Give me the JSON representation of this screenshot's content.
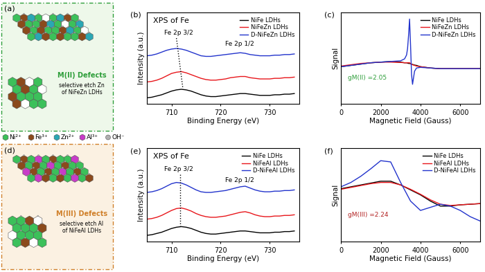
{
  "diagrams": [
    {
      "panel": "(a)",
      "title": "M(II) Defects",
      "note": "selective etch Zn\nof NiFeZn LDHs",
      "color": "#2e9e3a"
    },
    {
      "panel": "(d)",
      "title": "M(III) Defects",
      "note": "selective etch Al\nof NiFeAl LDHs",
      "color": "#d0802a"
    }
  ],
  "species": [
    {
      "name": "Ni²⁺",
      "color": "#3cc05a",
      "marker": "hexagon"
    },
    {
      "name": "Fe³⁺",
      "color": "#8b4a1c",
      "marker": "hexagon"
    },
    {
      "name": "Zn²⁺",
      "color": "#2aa7b4",
      "marker": "hexagon"
    },
    {
      "name": "Al³⁺",
      "color": "#c83cc8",
      "marker": "hexagon"
    },
    {
      "name": "OH⁻",
      "color": "#b0b0b0",
      "marker": "circle"
    }
  ],
  "chart_data": [
    {
      "type": "line",
      "panel": "(b)",
      "title": "XPS of Fe",
      "x_label": "Binding Energy (eV)",
      "y_label": "Intensity (a.u.)",
      "xlim": [
        705,
        736
      ],
      "xticks": [
        710,
        720,
        730
      ],
      "ylim": [
        0,
        15
      ],
      "tick_labels": "x",
      "legend": "upper right",
      "annotations": [
        {
          "text": "Fe 2p 3/2"
        },
        {
          "text": "Fe 2p 1/2"
        }
      ],
      "guide_line": {
        "x": [
          711.0,
          712.3
        ],
        "y": [
          10.8,
          2.6
        ],
        "line_style": "dotted"
      },
      "x": [
        705,
        706,
        707,
        708,
        709,
        710,
        711,
        712,
        713,
        714,
        715,
        716,
        717,
        718,
        719,
        720,
        721,
        722,
        723,
        724,
        725,
        726,
        727,
        728,
        729,
        730,
        731,
        732,
        733,
        734,
        735
      ],
      "series": [
        {
          "name": "NiFe LDHs",
          "color": "#000000",
          "values": [
            1.0,
            1.1,
            1.3,
            1.5,
            1.8,
            2.1,
            2.3,
            2.4,
            2.3,
            2.1,
            1.8,
            1.5,
            1.3,
            1.2,
            1.2,
            1.3,
            1.4,
            1.5,
            1.6,
            1.7,
            1.7,
            1.6,
            1.5,
            1.4,
            1.4,
            1.4,
            1.5,
            1.5,
            1.6,
            1.6,
            1.7
          ]
        },
        {
          "name": "NiFeZn LDHs",
          "color": "#e8161b",
          "values": [
            3.6,
            3.7,
            3.9,
            4.2,
            4.6,
            5.0,
            5.2,
            5.3,
            5.1,
            4.8,
            4.5,
            4.2,
            4.0,
            3.9,
            3.9,
            4.0,
            4.1,
            4.3,
            4.4,
            4.5,
            4.5,
            4.3,
            4.2,
            4.1,
            4.1,
            4.1,
            4.2,
            4.2,
            4.3,
            4.3,
            4.4
          ]
        },
        {
          "name": "D-NiFeZn LDHs",
          "color": "#2233cc",
          "values": [
            7.9,
            8.0,
            8.2,
            8.5,
            8.8,
            9.0,
            9.1,
            9.0,
            8.8,
            8.5,
            8.2,
            7.9,
            7.8,
            7.8,
            7.9,
            8.0,
            8.1,
            8.2,
            8.3,
            8.4,
            8.3,
            8.1,
            8.0,
            7.9,
            7.9,
            7.9,
            8.0,
            8.0,
            8.1,
            8.1,
            8.2
          ]
        }
      ]
    },
    {
      "type": "line",
      "panel": "(c)",
      "x_label": "Magnetic Field (Gauss)",
      "y_label": "Signal",
      "xlim": [
        0,
        7000
      ],
      "xticks": [
        0,
        2000,
        4000,
        6000
      ],
      "ylim": [
        -6,
        8
      ],
      "tick_labels": "x",
      "legend": "upper right",
      "annotations": [
        {
          "text": "gM(II) =2.05",
          "color": "#2e9e3a"
        }
      ],
      "x": [
        0,
        500,
        1000,
        1500,
        2000,
        2500,
        3000,
        3200,
        3300,
        3350,
        3400,
        3450,
        3500,
        3550,
        3600,
        3650,
        3700,
        3800,
        4000,
        4500,
        5000,
        5500,
        6000,
        6500,
        7000
      ],
      "series": [
        {
          "name": "NiFe LDHs",
          "color": "#000000",
          "values": [
            -0.3,
            -0.1,
            0.1,
            0.3,
            0.4,
            0.5,
            0.4,
            0.3,
            0.3,
            0.25,
            0.2,
            0.2,
            0.15,
            0.1,
            0.05,
            0,
            -0.05,
            -0.1,
            -0.3,
            -0.5,
            -0.6,
            -0.6,
            -0.6,
            -0.6,
            -0.6
          ]
        },
        {
          "name": "NiFeZn LDHs",
          "color": "#e8161b",
          "values": [
            -0.2,
            0,
            0.2,
            0.3,
            0.4,
            0.4,
            0.35,
            0.3,
            0.3,
            0.3,
            0.3,
            0.3,
            0.2,
            0.1,
            0.0,
            -0.05,
            -0.1,
            -0.2,
            -0.3,
            -0.5,
            -0.6,
            -0.6,
            -0.6,
            -0.6,
            -0.6
          ]
        },
        {
          "name": "D-NiFeZn LDHs",
          "color": "#2233cc",
          "values": [
            -0.3,
            -0.1,
            0.1,
            0.3,
            0.4,
            0.5,
            0.6,
            0.9,
            1.5,
            2.5,
            4.5,
            7.0,
            3.0,
            -1.5,
            -3.0,
            -2.0,
            -1.0,
            -0.5,
            -0.4,
            -0.5,
            -0.6,
            -0.6,
            -0.6,
            -0.6,
            -0.6
          ]
        }
      ]
    },
    {
      "type": "line",
      "panel": "(e)",
      "title": "XPS of Fe",
      "x_label": "Binding Energy (eV)",
      "y_label": "Intensity (a.u.)",
      "xlim": [
        705,
        736
      ],
      "xticks": [
        710,
        720,
        730
      ],
      "ylim": [
        0,
        15
      ],
      "tick_labels": "x",
      "legend": "upper right",
      "annotations": [
        {
          "text": "Fe 2p 3/2"
        },
        {
          "text": "Fe 2p 1/2"
        }
      ],
      "guide_line": {
        "x": [
          711.8,
          711.8
        ],
        "y": [
          10.8,
          2.6
        ],
        "line_style": "dotted"
      },
      "x": [
        705,
        706,
        707,
        708,
        709,
        710,
        711,
        712,
        713,
        714,
        715,
        716,
        717,
        718,
        719,
        720,
        721,
        722,
        723,
        724,
        725,
        726,
        727,
        728,
        729,
        730,
        731,
        732,
        733,
        734,
        735
      ],
      "series": [
        {
          "name": "NiFe LDHs",
          "color": "#000000",
          "values": [
            1.0,
            1.1,
            1.3,
            1.5,
            1.8,
            2.1,
            2.3,
            2.4,
            2.3,
            2.1,
            1.8,
            1.5,
            1.3,
            1.2,
            1.2,
            1.3,
            1.4,
            1.5,
            1.6,
            1.7,
            1.7,
            1.6,
            1.5,
            1.4,
            1.4,
            1.4,
            1.5,
            1.5,
            1.6,
            1.6,
            1.7
          ]
        },
        {
          "name": "NiFeAl LDHs",
          "color": "#e8161b",
          "values": [
            3.6,
            3.7,
            3.9,
            4.2,
            4.6,
            5.0,
            5.3,
            5.4,
            5.2,
            4.9,
            4.5,
            4.2,
            4.0,
            3.9,
            3.9,
            4.0,
            4.1,
            4.3,
            4.5,
            4.7,
            4.8,
            4.6,
            4.3,
            4.1,
            4.0,
            4.0,
            4.1,
            4.1,
            4.2,
            4.2,
            4.3
          ]
        },
        {
          "name": "D-NiFeAl LDHs",
          "color": "#2233cc",
          "values": [
            7.9,
            8.0,
            8.2,
            8.5,
            8.9,
            9.3,
            9.5,
            9.4,
            9.1,
            8.7,
            8.3,
            8.0,
            7.9,
            7.9,
            8.0,
            8.1,
            8.2,
            8.4,
            8.6,
            8.8,
            8.9,
            8.6,
            8.3,
            8.1,
            8.0,
            8.0,
            8.1,
            8.1,
            8.2,
            8.2,
            8.3
          ]
        }
      ]
    },
    {
      "type": "line",
      "panel": "(f)",
      "x_label": "Magnetic Field (Gauss)",
      "y_label": "Signal",
      "xlim": [
        0,
        7000
      ],
      "xticks": [
        0,
        2000,
        4000,
        6000
      ],
      "ylim": [
        -7.5,
        7.5
      ],
      "tick_labels": "x",
      "legend": "upper right",
      "annotations": [
        {
          "text": "gM(III) =2.24",
          "color": "#b22222"
        }
      ],
      "x": [
        0,
        500,
        1000,
        1500,
        2000,
        2500,
        3000,
        3500,
        4000,
        4500,
        5000,
        5500,
        6000,
        6500,
        7000
      ],
      "series": [
        {
          "name": "NiFe LDHs",
          "color": "#000000",
          "values": [
            1.0,
            1.3,
            1.6,
            1.9,
            2.2,
            2.2,
            1.6,
            0.8,
            0,
            -1.0,
            -1.8,
            -1.8,
            -1.6,
            -1.5,
            -1.4
          ]
        },
        {
          "name": "NiFeAl LDHs",
          "color": "#e8161b",
          "values": [
            0.9,
            1.2,
            1.5,
            1.8,
            2.0,
            2.0,
            1.6,
            0.9,
            0.1,
            -0.8,
            -1.5,
            -1.7,
            -1.6,
            -1.5,
            -1.4
          ]
        },
        {
          "name": "D-NiFeAl LDHs",
          "color": "#2233cc",
          "values": [
            1.3,
            2.0,
            3.0,
            4.2,
            5.5,
            5.3,
            2.0,
            -1.0,
            -2.5,
            -2.0,
            -1.5,
            -1.8,
            -2.5,
            -3.5,
            -4.2
          ]
        }
      ]
    }
  ]
}
